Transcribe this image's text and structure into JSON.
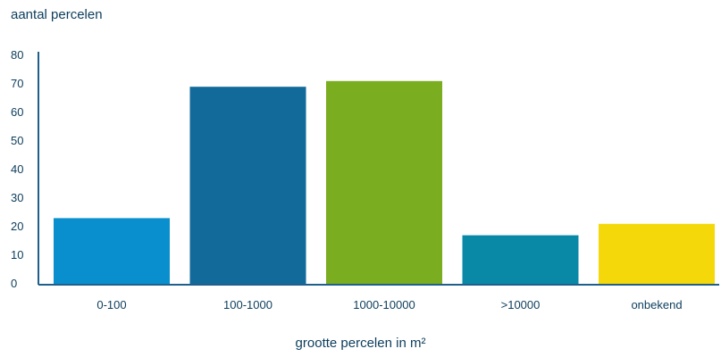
{
  "chart_data": {
    "type": "bar",
    "ylabel": "aantal percelen",
    "xlabel": "grootte percelen in m²",
    "categories": [
      "0-100",
      "100-1000",
      "1000-10000",
      ">10000",
      "onbekend"
    ],
    "values": [
      23,
      69,
      71,
      17,
      21
    ],
    "colors": [
      "#0a8fce",
      "#126a9b",
      "#7aad1f",
      "#0a89a7",
      "#f5d80a"
    ],
    "yticks": [
      0,
      10,
      20,
      30,
      40,
      50,
      60,
      70,
      80
    ],
    "ylim": [
      0,
      80
    ],
    "grid": false,
    "axis_color": "#1f5f8c"
  }
}
